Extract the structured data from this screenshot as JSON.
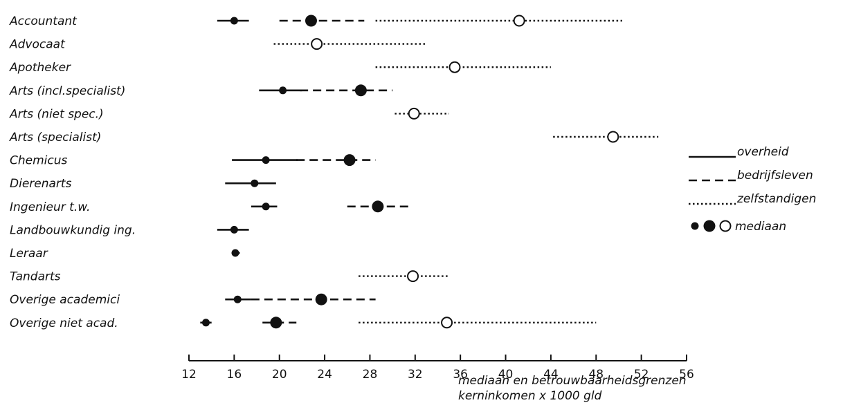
{
  "chart_data": {
    "type": "scatter",
    "title": "",
    "xlabel_line1": "mediaan en betrouwbaarheidsgrenzen",
    "xlabel_line2": "kerninkomen x 1000 gld",
    "ylabel": "",
    "xlim": [
      12,
      56
    ],
    "xticks": [
      "12",
      "16",
      "20",
      "24",
      "28",
      "32",
      "36",
      "40",
      "44",
      "48",
      "52",
      "56"
    ],
    "grid": false,
    "legend_position": "right",
    "categories": [
      "Accountant",
      "Advocaat",
      "Apotheker",
      "Arts (incl.specialist)",
      "Arts (niet spec.)",
      "Arts (specialist)",
      "Chemicus",
      "Dierenarts",
      "Ingenieur t.w.",
      "Landbouwkundig ing.",
      "Leraar",
      "Tandarts",
      "Overige academici",
      "Overige niet acad."
    ],
    "series": [
      {
        "name": "overheid",
        "line": "solid",
        "marker": "small-filled",
        "values": [
          {
            "category": "Accountant",
            "median": 16.0,
            "low": 14.5,
            "high": 17.3
          },
          {
            "category": "Arts (incl.specialist)",
            "median": 20.3,
            "low": 18.2,
            "high": 22.0
          },
          {
            "category": "Chemicus",
            "median": 18.8,
            "low": 15.8,
            "high": 21.6
          },
          {
            "category": "Dierenarts",
            "median": 17.8,
            "low": 15.2,
            "high": 19.7
          },
          {
            "category": "Ingenieur t.w.",
            "median": 18.8,
            "low": 17.5,
            "high": 19.8
          },
          {
            "category": "Landbouwkundig ing.",
            "median": 16.0,
            "low": 14.5,
            "high": 17.3
          },
          {
            "category": "Leraar",
            "median": 16.1,
            "low": 15.8,
            "high": 16.5
          },
          {
            "category": "Overige academici",
            "median": 16.3,
            "low": 15.2,
            "high": 17.5
          },
          {
            "category": "Overige niet acad.",
            "median": 13.5,
            "low": 13.0,
            "high": 14.0
          }
        ]
      },
      {
        "name": "bedrijfsleven",
        "line": "dashed",
        "marker": "large-filled",
        "values": [
          {
            "category": "Accountant",
            "median": 22.8,
            "low": 20.0,
            "high": 27.5
          },
          {
            "category": "Arts (incl.specialist)",
            "median": 27.2,
            "low": 21.8,
            "high": 30.0
          },
          {
            "category": "Chemicus",
            "median": 26.2,
            "low": 21.5,
            "high": 28.5
          },
          {
            "category": "Ingenieur t.w.",
            "median": 28.7,
            "low": 26.0,
            "high": 31.8
          },
          {
            "category": "Overige academici",
            "median": 23.7,
            "low": 17.5,
            "high": 28.5
          },
          {
            "category": "Overige niet acad.",
            "median": 19.7,
            "low": 18.5,
            "high": 21.5
          }
        ]
      },
      {
        "name": "zelfstandigen",
        "line": "dotted",
        "marker": "open",
        "values": [
          {
            "category": "Accountant",
            "median": 41.2,
            "low": 28.5,
            "high": 50.3
          },
          {
            "category": "Advocaat",
            "median": 23.3,
            "low": 19.5,
            "high": 33.0
          },
          {
            "category": "Apotheker",
            "median": 35.5,
            "low": 28.5,
            "high": 44.0
          },
          {
            "category": "Arts (niet spec.)",
            "median": 31.9,
            "low": 30.2,
            "high": 35.0
          },
          {
            "category": "Arts (specialist)",
            "median": 49.5,
            "low": 44.2,
            "high": 53.5
          },
          {
            "category": "Tandarts",
            "median": 31.8,
            "low": 27.0,
            "high": 35.0
          },
          {
            "category": "Overige niet acad.",
            "median": 34.8,
            "low": 27.0,
            "high": 48.0
          }
        ]
      }
    ],
    "legend": {
      "items": [
        "overheid",
        "bedrijfsleven",
        "zelfstandigen"
      ],
      "marker_label": "mediaan"
    }
  }
}
